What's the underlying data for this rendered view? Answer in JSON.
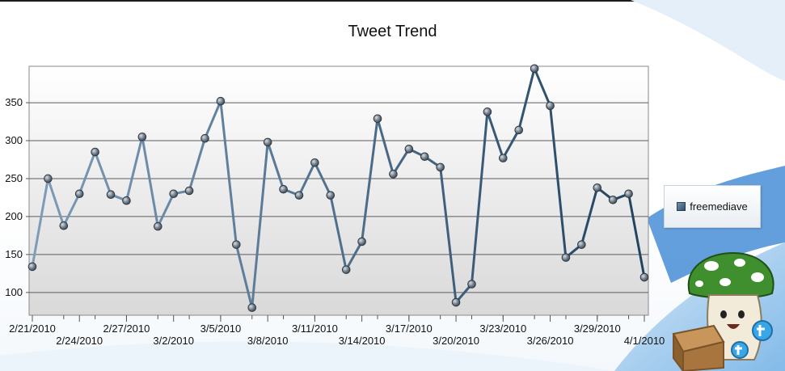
{
  "colors": {
    "line_start": "#7f9db9",
    "line_end": "#21425f",
    "marker": "#6e7a86",
    "grid": "#5c5c5c",
    "plot_top": "#ffffff",
    "plot_bottom": "#d9d9d9"
  },
  "chart_data": {
    "type": "line",
    "title": "Tweet Trend",
    "xlabel": "",
    "ylabel": "",
    "ylim": [
      70,
      398
    ],
    "yticks": [
      100,
      150,
      200,
      250,
      300,
      350
    ],
    "grid": true,
    "legend_position": "right",
    "x": [
      "2/21/2010",
      "2/22/2010",
      "2/23/2010",
      "2/24/2010",
      "2/25/2010",
      "2/26/2010",
      "2/27/2010",
      "2/28/2010",
      "3/1/2010",
      "3/2/2010",
      "3/3/2010",
      "3/4/2010",
      "3/5/2010",
      "3/6/2010",
      "3/7/2010",
      "3/8/2010",
      "3/9/2010",
      "3/10/2010",
      "3/11/2010",
      "3/12/2010",
      "3/13/2010",
      "3/14/2010",
      "3/15/2010",
      "3/16/2010",
      "3/17/2010",
      "3/18/2010",
      "3/19/2010",
      "3/20/2010",
      "3/21/2010",
      "3/22/2010",
      "3/23/2010",
      "3/24/2010",
      "3/25/2010",
      "3/26/2010",
      "3/27/2010",
      "3/28/2010",
      "3/29/2010",
      "3/30/2010",
      "3/31/2010",
      "4/1/2010"
    ],
    "x_tick_labels": [
      {
        "index": 0,
        "label": "2/21/2010",
        "row": 0
      },
      {
        "index": 3,
        "label": "2/24/2010",
        "row": 1
      },
      {
        "index": 6,
        "label": "2/27/2010",
        "row": 0
      },
      {
        "index": 9,
        "label": "3/2/2010",
        "row": 1
      },
      {
        "index": 12,
        "label": "3/5/2010",
        "row": 0
      },
      {
        "index": 15,
        "label": "3/8/2010",
        "row": 1
      },
      {
        "index": 18,
        "label": "3/11/2010",
        "row": 0
      },
      {
        "index": 21,
        "label": "3/14/2010",
        "row": 1
      },
      {
        "index": 24,
        "label": "3/17/2010",
        "row": 0
      },
      {
        "index": 27,
        "label": "3/20/2010",
        "row": 1
      },
      {
        "index": 30,
        "label": "3/23/2010",
        "row": 0
      },
      {
        "index": 33,
        "label": "3/26/2010",
        "row": 1
      },
      {
        "index": 36,
        "label": "3/29/2010",
        "row": 0
      },
      {
        "index": 39,
        "label": "4/1/2010",
        "row": 1
      }
    ],
    "series": [
      {
        "name": "freemediave",
        "values": [
          134,
          250,
          188,
          230,
          285,
          229,
          221,
          305,
          187,
          230,
          234,
          303,
          352,
          163,
          80,
          298,
          236,
          228,
          271,
          228,
          130,
          167,
          329,
          256,
          289,
          279,
          265,
          87,
          111,
          338,
          277,
          314,
          395,
          346,
          146,
          163,
          238,
          222,
          230,
          120
        ]
      }
    ]
  }
}
